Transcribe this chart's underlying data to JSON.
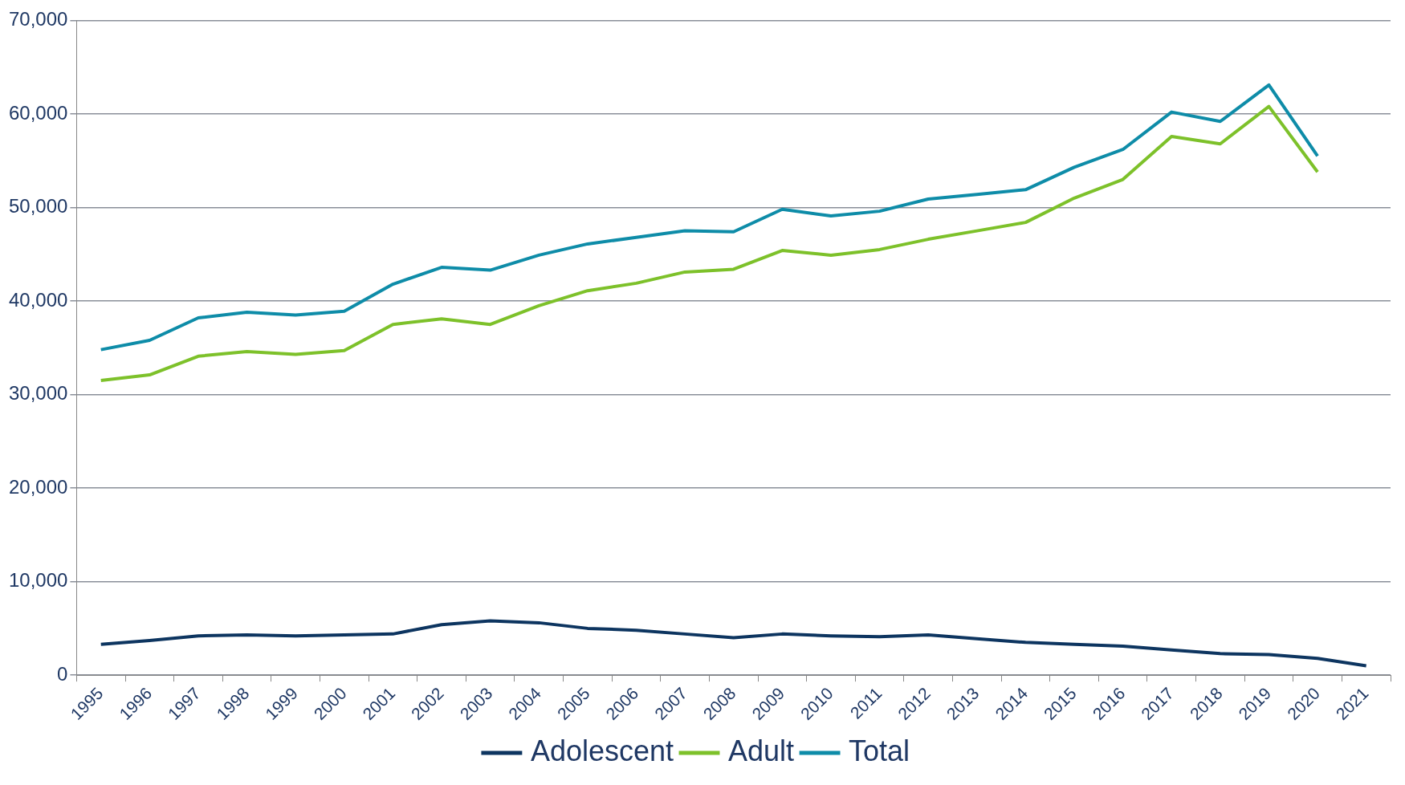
{
  "chart_data": {
    "type": "line",
    "categories": [
      "1995",
      "1996",
      "1997",
      "1998",
      "1999",
      "2000",
      "2001",
      "2002",
      "2003",
      "2004",
      "2005",
      "2006",
      "2007",
      "2008",
      "2009",
      "2010",
      "2011",
      "2012",
      "2013",
      "2014",
      "2015",
      "2016",
      "2017",
      "2018",
      "2019",
      "2020",
      "2021"
    ],
    "series": [
      {
        "name": "Adolescent",
        "color": "#0d3560",
        "values": [
          3300,
          3700,
          4200,
          4300,
          4200,
          4300,
          4400,
          5400,
          5800,
          5600,
          5000,
          4800,
          4400,
          4000,
          4400,
          4200,
          4100,
          4300,
          3900,
          3500,
          3300,
          3100,
          2700,
          2300,
          2200,
          1800,
          1000
        ]
      },
      {
        "name": "Adult",
        "color": "#7dc12a",
        "values": [
          31500,
          32100,
          34100,
          34600,
          34300,
          34700,
          37500,
          38100,
          37500,
          39500,
          41100,
          41900,
          43100,
          43400,
          45400,
          44900,
          45500,
          46600,
          47500,
          48400,
          51000,
          53000,
          57600,
          56800,
          60800,
          53800,
          null
        ]
      },
      {
        "name": "Total",
        "color": "#0e8ca8",
        "values": [
          34800,
          35800,
          38200,
          38800,
          38500,
          38900,
          41800,
          43600,
          43300,
          44900,
          46100,
          46800,
          47500,
          47400,
          49800,
          49100,
          49600,
          50900,
          51400,
          51900,
          54300,
          56200,
          60200,
          59200,
          63100,
          55500,
          null
        ]
      }
    ],
    "ylim": [
      0,
      70000
    ],
    "yticks": [
      {
        "value": 0,
        "label": "0"
      },
      {
        "value": 10000,
        "label": "10,000"
      },
      {
        "value": 20000,
        "label": "20,000"
      },
      {
        "value": 30000,
        "label": "30,000"
      },
      {
        "value": 40000,
        "label": "40,000"
      },
      {
        "value": 50000,
        "label": "50,000"
      },
      {
        "value": 60000,
        "label": "60,000"
      },
      {
        "value": 70000,
        "label": "70,000"
      }
    ],
    "grid": "y",
    "legend": "bottom",
    "marker": "none",
    "line_style": "solid"
  }
}
